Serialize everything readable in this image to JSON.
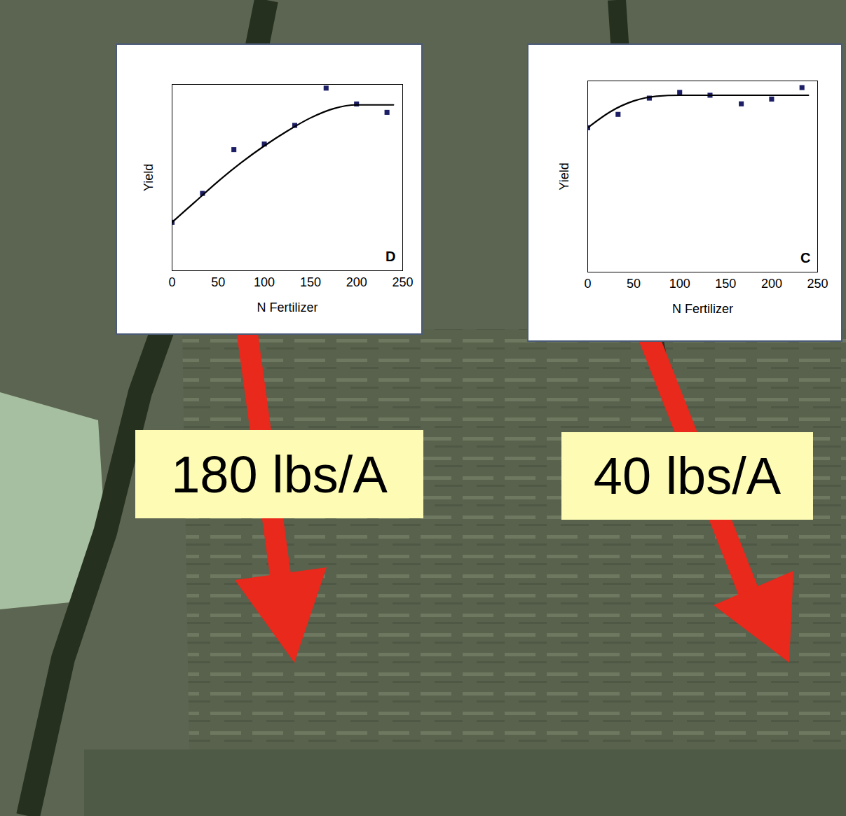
{
  "chart_data": [
    {
      "type": "scatter",
      "xlabel": "N Fertilizer",
      "ylabel": "Yield",
      "xlim": [
        0,
        250
      ],
      "xticks": [
        0,
        50,
        100,
        150,
        200,
        250
      ],
      "ylim": [
        0,
        100
      ],
      "yticks": [],
      "tick_labels": "x",
      "grid": false,
      "panel_label": "D",
      "callout": "180 lbs/A",
      "series": [
        {
          "type": "scatter",
          "marker": "square",
          "color": "#1c1f66",
          "x": [
            0,
            33,
            67,
            100,
            133,
            167,
            200,
            233
          ],
          "values": [
            26,
            41.5,
            65,
            68,
            78,
            98,
            89.5,
            85
          ]
        },
        {
          "type": "line",
          "line_style": "solid",
          "color": "#000000",
          "x": [
            0,
            25,
            50,
            75,
            100,
            125,
            150,
            175,
            200,
            225,
            240
          ],
          "values": [
            26,
            37,
            48,
            58,
            67,
            75,
            82,
            87,
            89,
            89,
            89
          ]
        }
      ]
    },
    {
      "type": "scatter",
      "xlabel": "N Fertilizer",
      "ylabel": "Yield",
      "xlim": [
        0,
        250
      ],
      "xticks": [
        0,
        50,
        100,
        150,
        200,
        250
      ],
      "ylim": [
        0,
        100
      ],
      "yticks": [],
      "tick_labels": "x",
      "grid": false,
      "panel_label": "C",
      "callout": "40 lbs/A",
      "series": [
        {
          "type": "scatter",
          "marker": "square",
          "color": "#1c1f66",
          "x": [
            0,
            33,
            67,
            100,
            133,
            167,
            200,
            233
          ],
          "values": [
            75.5,
            82.5,
            91,
            94,
            92.5,
            88,
            90.5,
            96.5
          ]
        },
        {
          "type": "line",
          "line_style": "solid",
          "color": "#000000",
          "x": [
            0,
            25,
            50,
            75,
            100,
            125,
            150,
            175,
            200,
            225,
            240
          ],
          "values": [
            75.5,
            84,
            89.5,
            92,
            92.5,
            92.5,
            92.5,
            92.5,
            92.5,
            92.5,
            92.5
          ]
        }
      ]
    }
  ]
}
